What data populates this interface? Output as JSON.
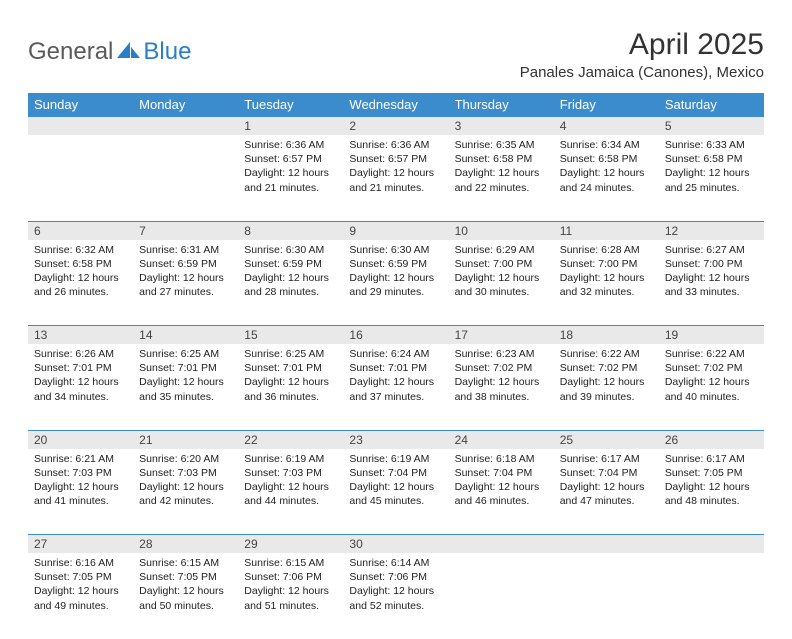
{
  "brand": {
    "word1": "General",
    "word2": "Blue"
  },
  "title": "April 2025",
  "location": "Panales Jamaica (Canones), Mexico",
  "colors": {
    "header_bg": "#3b8ccc",
    "header_text": "#ffffff",
    "daynum_bg": "#e9e9e9",
    "rule": "#3b8ccc",
    "logo_gray": "#5a5a5a",
    "logo_blue": "#2a7ec7"
  },
  "weekdays": [
    "Sunday",
    "Monday",
    "Tuesday",
    "Wednesday",
    "Thursday",
    "Friday",
    "Saturday"
  ],
  "weeks": [
    [
      null,
      null,
      {
        "n": "1",
        "r": "6:36 AM",
        "s": "6:57 PM",
        "d": "12 hours and 21 minutes."
      },
      {
        "n": "2",
        "r": "6:36 AM",
        "s": "6:57 PM",
        "d": "12 hours and 21 minutes."
      },
      {
        "n": "3",
        "r": "6:35 AM",
        "s": "6:58 PM",
        "d": "12 hours and 22 minutes."
      },
      {
        "n": "4",
        "r": "6:34 AM",
        "s": "6:58 PM",
        "d": "12 hours and 24 minutes."
      },
      {
        "n": "5",
        "r": "6:33 AM",
        "s": "6:58 PM",
        "d": "12 hours and 25 minutes."
      }
    ],
    [
      {
        "n": "6",
        "r": "6:32 AM",
        "s": "6:58 PM",
        "d": "12 hours and 26 minutes."
      },
      {
        "n": "7",
        "r": "6:31 AM",
        "s": "6:59 PM",
        "d": "12 hours and 27 minutes."
      },
      {
        "n": "8",
        "r": "6:30 AM",
        "s": "6:59 PM",
        "d": "12 hours and 28 minutes."
      },
      {
        "n": "9",
        "r": "6:30 AM",
        "s": "6:59 PM",
        "d": "12 hours and 29 minutes."
      },
      {
        "n": "10",
        "r": "6:29 AM",
        "s": "7:00 PM",
        "d": "12 hours and 30 minutes."
      },
      {
        "n": "11",
        "r": "6:28 AM",
        "s": "7:00 PM",
        "d": "12 hours and 32 minutes."
      },
      {
        "n": "12",
        "r": "6:27 AM",
        "s": "7:00 PM",
        "d": "12 hours and 33 minutes."
      }
    ],
    [
      {
        "n": "13",
        "r": "6:26 AM",
        "s": "7:01 PM",
        "d": "12 hours and 34 minutes."
      },
      {
        "n": "14",
        "r": "6:25 AM",
        "s": "7:01 PM",
        "d": "12 hours and 35 minutes."
      },
      {
        "n": "15",
        "r": "6:25 AM",
        "s": "7:01 PM",
        "d": "12 hours and 36 minutes."
      },
      {
        "n": "16",
        "r": "6:24 AM",
        "s": "7:01 PM",
        "d": "12 hours and 37 minutes."
      },
      {
        "n": "17",
        "r": "6:23 AM",
        "s": "7:02 PM",
        "d": "12 hours and 38 minutes."
      },
      {
        "n": "18",
        "r": "6:22 AM",
        "s": "7:02 PM",
        "d": "12 hours and 39 minutes."
      },
      {
        "n": "19",
        "r": "6:22 AM",
        "s": "7:02 PM",
        "d": "12 hours and 40 minutes."
      }
    ],
    [
      {
        "n": "20",
        "r": "6:21 AM",
        "s": "7:03 PM",
        "d": "12 hours and 41 minutes."
      },
      {
        "n": "21",
        "r": "6:20 AM",
        "s": "7:03 PM",
        "d": "12 hours and 42 minutes."
      },
      {
        "n": "22",
        "r": "6:19 AM",
        "s": "7:03 PM",
        "d": "12 hours and 44 minutes."
      },
      {
        "n": "23",
        "r": "6:19 AM",
        "s": "7:04 PM",
        "d": "12 hours and 45 minutes."
      },
      {
        "n": "24",
        "r": "6:18 AM",
        "s": "7:04 PM",
        "d": "12 hours and 46 minutes."
      },
      {
        "n": "25",
        "r": "6:17 AM",
        "s": "7:04 PM",
        "d": "12 hours and 47 minutes."
      },
      {
        "n": "26",
        "r": "6:17 AM",
        "s": "7:05 PM",
        "d": "12 hours and 48 minutes."
      }
    ],
    [
      {
        "n": "27",
        "r": "6:16 AM",
        "s": "7:05 PM",
        "d": "12 hours and 49 minutes."
      },
      {
        "n": "28",
        "r": "6:15 AM",
        "s": "7:05 PM",
        "d": "12 hours and 50 minutes."
      },
      {
        "n": "29",
        "r": "6:15 AM",
        "s": "7:06 PM",
        "d": "12 hours and 51 minutes."
      },
      {
        "n": "30",
        "r": "6:14 AM",
        "s": "7:06 PM",
        "d": "12 hours and 52 minutes."
      },
      null,
      null,
      null
    ]
  ],
  "labels": {
    "sunrise": "Sunrise: ",
    "sunset": "Sunset: ",
    "daylight": "Daylight: "
  }
}
